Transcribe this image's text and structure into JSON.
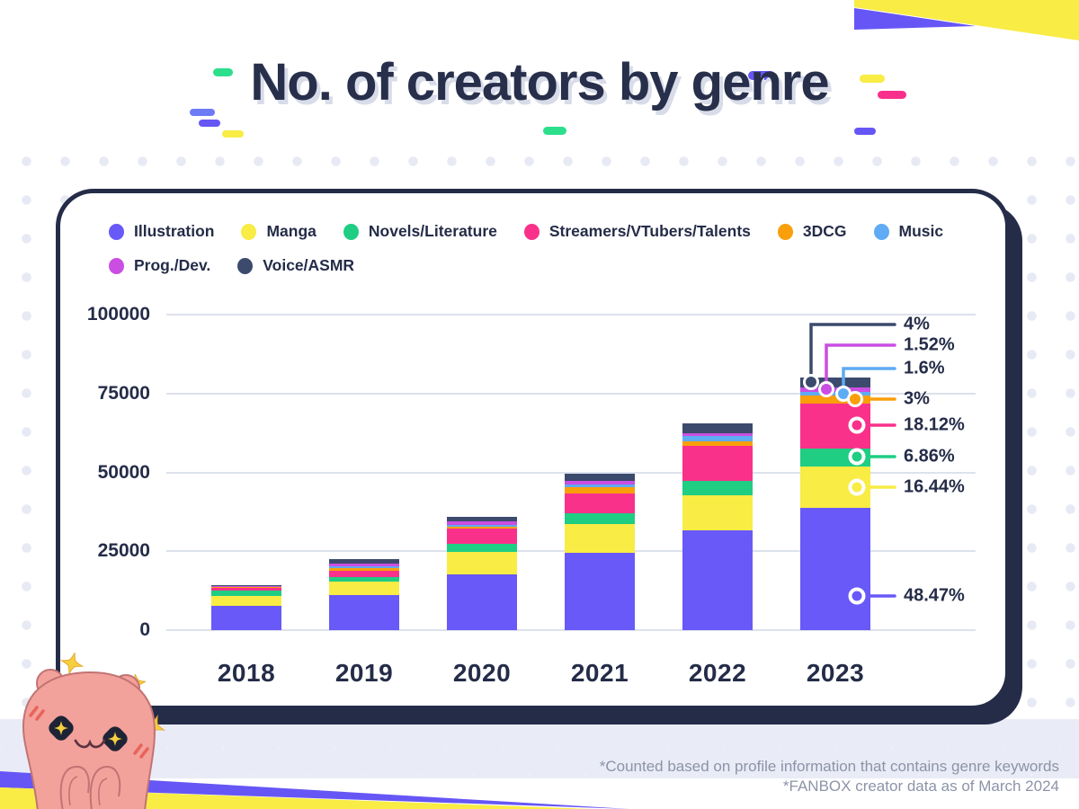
{
  "title": "No. of creators by genre",
  "footnotes": [
    "*Counted based on profile information that contains genre keywords",
    "*FANBOX creator data as of March 2024"
  ],
  "colors": {
    "ink_navy": "#242c48",
    "grid": "#dde1ec",
    "title_shadow": "#d8dce9",
    "footnote_gray": "#8d93a8",
    "decor_yellow": "#f8ec45",
    "decor_purple": "#6656f5",
    "decor_pink": "#f8308c",
    "decor_green": "#2bdf8d",
    "decor_blue": "#6d7bf5"
  },
  "chart_data": {
    "type": "bar",
    "stacked": true,
    "title": "No. of creators by genre",
    "xlabel": "",
    "ylabel": "",
    "x": [
      "2018",
      "2019",
      "2020",
      "2021",
      "2022",
      "2023"
    ],
    "ylim": [
      0,
      100000
    ],
    "yticks": [
      "100000",
      "75000",
      "50000",
      "25000",
      "0"
    ],
    "grid": true,
    "legend_position": "top",
    "series": [
      {
        "name": "Illustration",
        "color": "#6859f8",
        "values": [
          7600,
          11200,
          17600,
          24500,
          31500,
          38776
        ]
      },
      {
        "name": "Manga",
        "color": "#f8ec45",
        "values": [
          3100,
          4100,
          7300,
          9200,
          11200,
          13152
        ]
      },
      {
        "name": "Novels/Literature",
        "color": "#1fcd83",
        "values": [
          1700,
          1450,
          2350,
          3300,
          4550,
          5488
        ]
      },
      {
        "name": "Streamers/VTubers/Talents",
        "color": "#f9318b",
        "values": [
          900,
          2100,
          4850,
          6450,
          11100,
          14496
        ]
      },
      {
        "name": "3DCG",
        "color": "#f99f0b",
        "values": [
          350,
          760,
          660,
          1900,
          1620,
          2400
        ]
      },
      {
        "name": "Music",
        "color": "#5fabf4",
        "values": [
          150,
          650,
          680,
          950,
          1520,
          1280
        ]
      },
      {
        "name": "Prog./Dev.",
        "color": "#ca4ee2",
        "values": [
          300,
          940,
          940,
          940,
          950,
          1216
        ]
      },
      {
        "name": "Voice/ASMR",
        "color": "#3b4a6d",
        "values": [
          300,
          1350,
          1500,
          2280,
          3040,
          3200
        ]
      }
    ],
    "annotations": [
      {
        "series": "Voice/ASMR",
        "text": "4%",
        "year": "2023"
      },
      {
        "series": "Prog./Dev.",
        "text": "1.52%",
        "year": "2023"
      },
      {
        "series": "Music",
        "text": "1.6%",
        "year": "2023"
      },
      {
        "series": "3DCG",
        "text": "3%",
        "year": "2023"
      },
      {
        "series": "Streamers/VTubers/Talents",
        "text": "18.12%",
        "year": "2023"
      },
      {
        "series": "Novels/Literature",
        "text": "6.86%",
        "year": "2023"
      },
      {
        "series": "Manga",
        "text": "16.44%",
        "year": "2023"
      },
      {
        "series": "Illustration",
        "text": "48.47%",
        "year": "2023"
      }
    ]
  }
}
